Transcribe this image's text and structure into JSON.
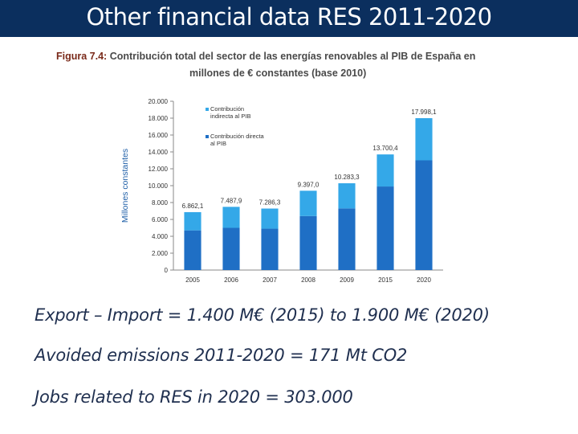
{
  "slide": {
    "title": "Other financial data RES 2011-2020",
    "title_bar_color": "#0b2f5e"
  },
  "figure": {
    "label": "Figura 7.4:",
    "caption_line1": "Contribución total del sector de las energías renovables al PIB de España en",
    "caption_line2": "millones de € constantes (base 2010)"
  },
  "chart_data": {
    "type": "bar",
    "stacked": true,
    "categories": [
      "2005",
      "2006",
      "2007",
      "2008",
      "2009",
      "2015",
      "2020"
    ],
    "series": [
      {
        "name": "Contribución directa al PIB",
        "color": "#1f6fc5",
        "values": [
          4700,
          5000,
          4900,
          6400,
          7300,
          9900,
          13000
        ]
      },
      {
        "name": "Contribución indirecta al PIB",
        "color": "#34a8e8",
        "values": [
          2162.1,
          2487.9,
          2386.3,
          2997.0,
          2983.3,
          3800.4,
          4998.1
        ]
      }
    ],
    "totals": [
      6862.1,
      7487.9,
      7286.3,
      9397.0,
      10283.3,
      13700.4,
      17998.1
    ],
    "total_labels": [
      "6.862,1",
      "7.487,9",
      "7.286,3",
      "9.397,0",
      "10.283,3",
      "13.700,4",
      "17.998,1"
    ],
    "ylabel": "Millones constantes",
    "ylim": [
      0,
      20000
    ],
    "yticks": [
      "0",
      "2.000",
      "4.000",
      "6.000",
      "8.000",
      "10.000",
      "12.000",
      "14.000",
      "16.000",
      "18.000",
      "20.000"
    ],
    "legend": [
      {
        "line1": "Contribución",
        "line2": "indirecta al PIB",
        "color": "#34a8e8"
      },
      {
        "line1": "Contribución directa",
        "line2": "al PIB",
        "color": "#1f6fc5"
      }
    ],
    "legend_position": "top-left",
    "grid": false
  },
  "statements": {
    "trade": "Export – Import  = 1.400 M€ (2015) to 1.900 M€ (2020)",
    "emissions": "Avoided emissions 2011-2020 = 171 Mt CO2",
    "jobs": "Jobs related to RES in 2020 = 303.000"
  }
}
